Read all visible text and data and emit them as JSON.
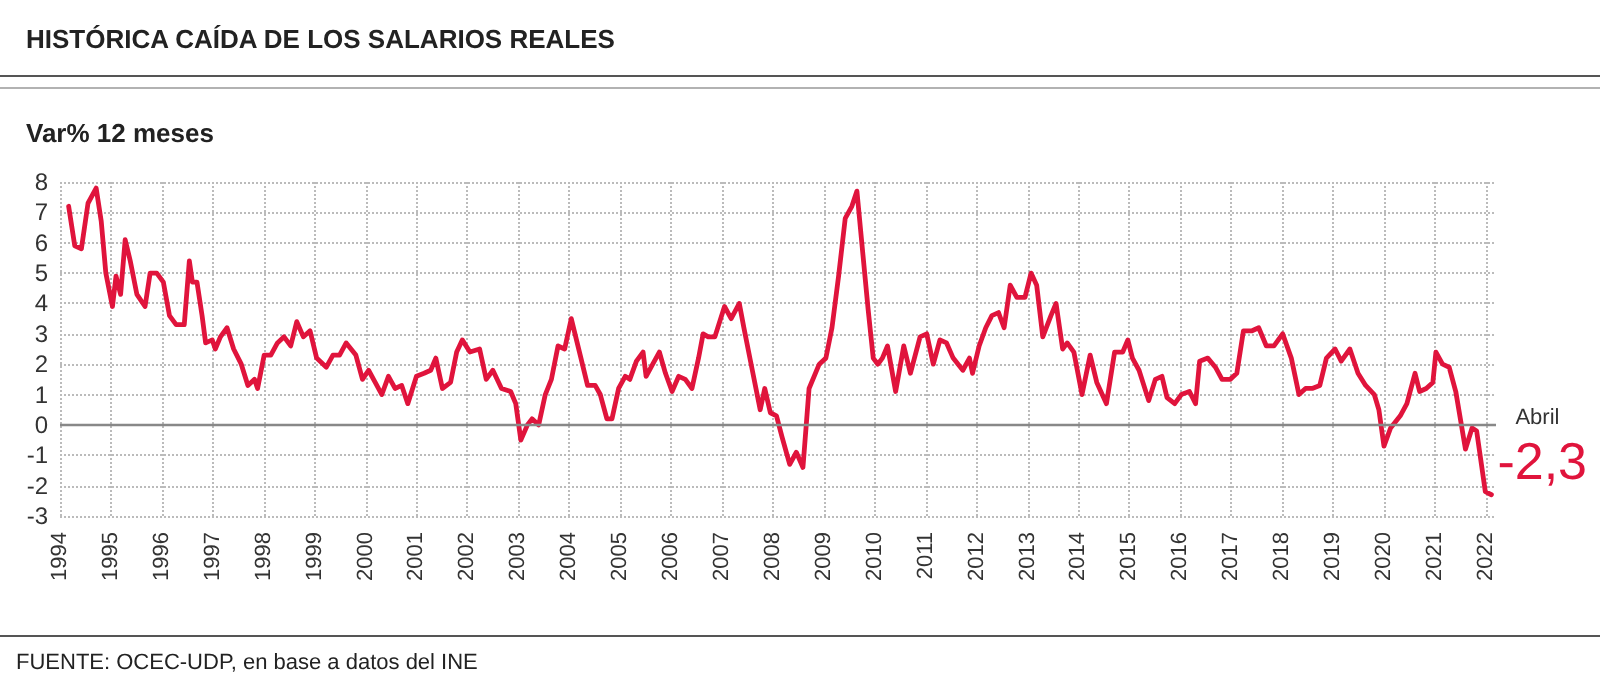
{
  "chart_data": {
    "type": "line",
    "title": "HISTÓRICA CAÍDA DE LOS SALARIOS REALES",
    "subtitle": "Var% 12 meses",
    "annotations": [
      "Abril",
      {
        "text": "-2,3",
        "x": 2022.11,
        "y": -2.3
      },
      "FUENTE: OCEC-UDP, en base a datos del INE"
    ],
    "series": [
      {
        "color": "#e0143c",
        "x": [
          1994.17,
          1994.29,
          1994.42,
          1994.55,
          1994.71,
          1994.81,
          1994.9,
          1995.03,
          1995.1,
          1995.19,
          1995.28,
          1995.38,
          1995.51,
          1995.67,
          1995.77,
          1995.9,
          1996.03,
          1996.15,
          1996.28,
          1996.44,
          1996.54,
          1996.6,
          1996.69,
          1996.79,
          1996.86,
          1996.99,
          1997.05,
          1997.15,
          1997.28,
          1997.41,
          1997.56,
          1997.69,
          1997.82,
          1997.88,
          1998.01,
          1998.14,
          1998.27,
          1998.4,
          1998.53,
          1998.65,
          1998.78,
          1998.91,
          1999.04,
          1999.23,
          1999.36,
          1999.49,
          1999.62,
          1999.81,
          1999.94,
          2000.06,
          2000.19,
          2000.32,
          2000.45,
          2000.58,
          2000.71,
          2000.83,
          2001.0,
          2001.15,
          2001.28,
          2001.38,
          2001.51,
          2001.67,
          2001.79,
          2001.9,
          2002.05,
          2002.24,
          2002.37,
          2002.5,
          2002.67,
          2002.85,
          2002.95,
          2003.05,
          2003.18,
          2003.27,
          2003.4,
          2003.53,
          2003.65,
          2003.78,
          2003.91,
          2004.04,
          2004.23,
          2004.36,
          2004.51,
          2004.61,
          2004.74,
          2004.84,
          2004.97,
          2005.1,
          2005.19,
          2005.32,
          2005.45,
          2005.51,
          2005.64,
          2005.77,
          2005.89,
          2006.02,
          2006.15,
          2006.28,
          2006.41,
          2006.54,
          2006.63,
          2006.73,
          2006.86,
          2007.05,
          2007.18,
          2007.34,
          2007.43,
          2007.56,
          2007.75,
          2007.84,
          2007.95,
          2008.07,
          2008.18,
          2008.33,
          2008.46,
          2008.59,
          2008.71,
          2008.91,
          2009.04,
          2009.16,
          2009.29,
          2009.42,
          2009.55,
          2009.65,
          2009.74,
          2009.87,
          2009.97,
          2010.06,
          2010.15,
          2010.25,
          2010.41,
          2010.57,
          2010.7,
          2010.89,
          2011.02,
          2011.15,
          2011.28,
          2011.41,
          2011.54,
          2011.73,
          2011.86,
          2011.92,
          2012.05,
          2012.18,
          2012.3,
          2012.43,
          2012.54,
          2012.66,
          2012.79,
          2012.95,
          2013.07,
          2013.18,
          2013.3,
          2013.46,
          2013.56,
          2013.69,
          2013.78,
          2013.91,
          2014.07,
          2014.23,
          2014.36,
          2014.55,
          2014.71,
          2014.87,
          2014.97,
          2015.06,
          2015.19,
          2015.38,
          2015.51,
          2015.64,
          2015.74,
          2015.89,
          2016.02,
          2016.18,
          2016.3,
          2016.38,
          2016.54,
          2016.69,
          2016.82,
          2016.98,
          2017.11,
          2017.24,
          2017.41,
          2017.54,
          2017.69,
          2017.84,
          2018.01,
          2018.18,
          2018.33,
          2018.46,
          2018.59,
          2018.74,
          2018.87,
          2019.04,
          2019.16,
          2019.33,
          2019.49,
          2019.64,
          2019.81,
          2019.9,
          2020.0,
          2020.13,
          2020.32,
          2020.45,
          2020.61,
          2020.7,
          2020.83,
          2020.96,
          2021.02,
          2021.15,
          2021.28,
          2021.41,
          2021.6,
          2021.73,
          2021.82,
          2021.99,
          2022.11
        ],
        "values": [
          7.2,
          5.9,
          5.8,
          7.3,
          7.8,
          6.7,
          5.0,
          3.9,
          4.9,
          4.3,
          6.1,
          5.4,
          4.3,
          3.9,
          5.0,
          5.0,
          4.7,
          3.6,
          3.3,
          3.3,
          5.4,
          4.7,
          4.7,
          3.6,
          2.7,
          2.8,
          2.5,
          2.9,
          3.2,
          2.5,
          2.0,
          1.3,
          1.5,
          1.2,
          2.3,
          2.3,
          2.7,
          2.9,
          2.6,
          3.4,
          2.9,
          3.1,
          2.2,
          1.9,
          2.3,
          2.3,
          2.7,
          2.3,
          1.5,
          1.8,
          1.4,
          1.0,
          1.6,
          1.2,
          1.3,
          0.7,
          1.6,
          1.7,
          1.8,
          2.2,
          1.2,
          1.4,
          2.4,
          2.8,
          2.4,
          2.5,
          1.5,
          1.8,
          1.2,
          1.1,
          0.7,
          -0.5,
          0,
          0.2,
          0,
          1.0,
          1.5,
          2.6,
          2.5,
          3.5,
          2.2,
          1.3,
          1.3,
          1.0,
          0.2,
          0.2,
          1.2,
          1.6,
          1.5,
          2.1,
          2.4,
          1.6,
          2.0,
          2.4,
          1.7,
          1.1,
          1.6,
          1.5,
          1.2,
          2.2,
          3.0,
          2.9,
          2.9,
          3.9,
          3.5,
          4.0,
          3.2,
          2.1,
          0.5,
          1.2,
          0.4,
          0.3,
          -0.4,
          -1.3,
          -0.9,
          -1.4,
          1.2,
          2.0,
          2.2,
          3.2,
          4.9,
          6.8,
          7.2,
          7.7,
          6.1,
          3.8,
          2.2,
          2.0,
          2.2,
          2.6,
          1.1,
          2.6,
          1.7,
          2.9,
          3.0,
          2.0,
          2.8,
          2.7,
          2.2,
          1.8,
          2.2,
          1.7,
          2.6,
          3.2,
          3.6,
          3.7,
          3.2,
          4.6,
          4.2,
          4.2,
          5.0,
          4.6,
          2.9,
          3.6,
          4.0,
          2.5,
          2.7,
          2.4,
          1.0,
          2.3,
          1.4,
          0.7,
          2.4,
          2.4,
          2.8,
          2.2,
          1.8,
          0.8,
          1.5,
          1.6,
          0.9,
          0.7,
          1.0,
          1.1,
          0.7,
          2.1,
          2.2,
          1.9,
          1.5,
          1.5,
          1.7,
          3.1,
          3.1,
          3.2,
          2.6,
          2.6,
          3.0,
          2.2,
          1.0,
          1.2,
          1.2,
          1.3,
          2.2,
          2.5,
          2.1,
          2.5,
          1.7,
          1.3,
          1.0,
          0.5,
          -0.7,
          -0.1,
          0.3,
          0.7,
          1.7,
          1.1,
          1.2,
          1.4,
          2.4,
          2.0,
          1.9,
          1.1,
          -0.8,
          -0.1,
          -0.2,
          -2.2,
          -2.3
        ]
      }
    ],
    "xlim": [
      1994,
      2022.2
    ],
    "xticks": [
      1994,
      1995,
      1996,
      1997,
      1998,
      1999,
      2000,
      2001,
      2002,
      2003,
      2004,
      2005,
      2006,
      2007,
      2008,
      2009,
      2010,
      2011,
      2012,
      2013,
      2014,
      2015,
      2016,
      2017,
      2018,
      2019,
      2020,
      2021,
      2022
    ],
    "ylim": [
      -3,
      8
    ],
    "yticks": [
      -3,
      -2,
      -1,
      0,
      1,
      2,
      3,
      4,
      5,
      6,
      7,
      8
    ],
    "ref_lines": [
      {
        "axis": "y",
        "value": 0,
        "color": "#888888"
      }
    ],
    "grid": true,
    "line_style": "solid",
    "marker": "none"
  }
}
